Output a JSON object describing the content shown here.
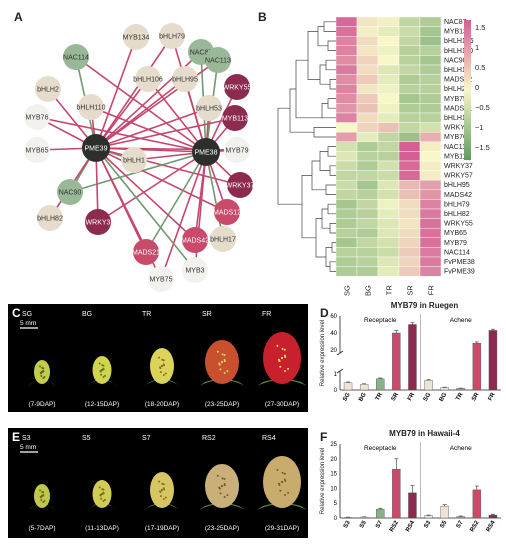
{
  "panels": {
    "a": "A",
    "b": "B",
    "c": "C",
    "d": "D",
    "e": "E",
    "f": "F"
  },
  "network": {
    "hubs": [
      "PME39",
      "PME38"
    ],
    "nodes": [
      {
        "label": "bHLH79",
        "color": "#e6dccb"
      },
      {
        "label": "NAC87",
        "color": "#98b898"
      },
      {
        "label": "MYB134",
        "color": "#e6dccb"
      },
      {
        "label": "NAC114",
        "color": "#98b898"
      },
      {
        "label": "bHLH106",
        "color": "#e6dccb"
      },
      {
        "label": "bHLH95",
        "color": "#e6dccb"
      },
      {
        "label": "NAC113",
        "color": "#98b898"
      },
      {
        "label": "bHLH2",
        "color": "#e6dccb"
      },
      {
        "label": "bHLH110",
        "color": "#e6dccb"
      },
      {
        "label": "bHLH53",
        "color": "#e6dccb"
      },
      {
        "label": "WRKY55",
        "color": "#8c2a50"
      },
      {
        "label": "MYB76",
        "color": "#f3f1ee"
      },
      {
        "label": "MYB113",
        "color": "#8c2a50"
      },
      {
        "label": "MYB65",
        "color": "#f3f1ee"
      },
      {
        "label": "MYB79",
        "color": "#f3f1ee"
      },
      {
        "label": "bHLH1",
        "color": "#e6dccb"
      },
      {
        "label": "WRKY37",
        "color": "#8c2a50"
      },
      {
        "label": "NAC90",
        "color": "#98b898"
      },
      {
        "label": "MADS12",
        "color": "#c94a6a"
      },
      {
        "label": "bHLH82",
        "color": "#e6dccb"
      },
      {
        "label": "WRKY3",
        "color": "#8c2a50"
      },
      {
        "label": "MADS21",
        "color": "#c94a6a"
      },
      {
        "label": "MADS42",
        "color": "#c94a6a"
      },
      {
        "label": "bHLH17",
        "color": "#e6dccb"
      },
      {
        "label": "MYB75",
        "color": "#f3f1ee"
      },
      {
        "label": "MYB3",
        "color": "#f3f1ee"
      }
    ]
  },
  "heatmap": {
    "columns": [
      "SG",
      "BG",
      "TR",
      "SR",
      "FR"
    ],
    "rows": [
      "NAC87",
      "MYB134",
      "bHLH106",
      "bHLH110",
      "NAC90",
      "bHLH17",
      "MADS12",
      "bHLH2",
      "MYB75",
      "MADS21",
      "bHLH1",
      "WRKY3",
      "MYB76",
      "NAC113",
      "MYB113",
      "WRKY37",
      "WRKY57",
      "bHLH95",
      "MADS42",
      "bHLH79",
      "bHLH82",
      "WRKY55",
      "MYB65",
      "MYB79",
      "NAC114",
      "FvPME38",
      "FvPME39"
    ],
    "values": [
      [
        1.6,
        0.2,
        0.1,
        -0.6,
        -0.8
      ],
      [
        1.5,
        0.1,
        -0.2,
        -0.5,
        -0.9
      ],
      [
        1.3,
        0.3,
        0.0,
        -0.6,
        -1.0
      ],
      [
        1.3,
        0.2,
        -0.1,
        -0.7,
        -0.7
      ],
      [
        1.2,
        0.4,
        0.0,
        -0.7,
        -0.9
      ],
      [
        1.4,
        0.3,
        -0.3,
        -0.6,
        -0.8
      ],
      [
        1.2,
        0.5,
        -0.2,
        -0.8,
        -0.7
      ],
      [
        1.3,
        0.2,
        -0.1,
        -0.7,
        -0.7
      ],
      [
        1.2,
        0.5,
        0.0,
        -0.9,
        -0.8
      ],
      [
        1.1,
        0.6,
        -0.1,
        -0.8,
        -0.8
      ],
      [
        1.3,
        0.3,
        -0.2,
        -0.7,
        -0.7
      ],
      [
        0.0,
        0.4,
        0.6,
        -0.6,
        -0.4
      ],
      [
        1.0,
        -0.2,
        -0.6,
        -1.0,
        0.8
      ],
      [
        -0.4,
        -0.8,
        -0.6,
        1.7,
        0.1
      ],
      [
        -0.3,
        -0.7,
        -0.7,
        1.7,
        0.0
      ],
      [
        -0.5,
        -0.8,
        -0.4,
        1.6,
        0.1
      ],
      [
        -0.6,
        -0.6,
        -0.5,
        1.6,
        0.1
      ],
      [
        -0.5,
        -0.9,
        -0.3,
        0.7,
        1.0
      ],
      [
        -0.6,
        -0.7,
        -0.4,
        0.6,
        1.1
      ],
      [
        -0.9,
        -0.6,
        -0.1,
        0.3,
        1.3
      ],
      [
        -0.8,
        -0.7,
        -0.2,
        0.3,
        1.4
      ],
      [
        -0.8,
        -0.6,
        -0.3,
        0.2,
        1.5
      ],
      [
        -0.7,
        -0.8,
        -0.3,
        0.3,
        1.5
      ],
      [
        -0.9,
        -0.6,
        -0.4,
        0.4,
        1.5
      ],
      [
        -0.7,
        -0.7,
        -0.5,
        0.5,
        1.4
      ],
      [
        -0.8,
        -0.7,
        -0.3,
        0.4,
        1.4
      ],
      [
        -0.8,
        -0.8,
        -0.2,
        0.5,
        1.3
      ]
    ],
    "legend_ticks": [
      "1.5",
      "1",
      "0.5",
      "0",
      "−0.5",
      "−1",
      "−1.5"
    ],
    "colors": {
      "high": "#d55f95",
      "mid": "#f7f7c8",
      "low": "#5e9a5e"
    }
  },
  "photos_c": {
    "scale": "5 mm",
    "stages": [
      "SG",
      "BG",
      "TR",
      "SR",
      "FR"
    ],
    "dap": [
      "(7-9DAP)",
      "(12-15DAP)",
      "(18-20DAP)",
      "(23-25DAP)",
      "(27-30DAP)"
    ]
  },
  "photos_e": {
    "scale": "5 mm",
    "stages": [
      "S3",
      "S5",
      "S7",
      "RS2",
      "RS4"
    ],
    "dap": [
      "(5-7DAP)",
      "(11-13DAP)",
      "(17-19DAP)",
      "(23-25DAP)",
      "(29-31DAP)"
    ]
  },
  "chart_data": [
    {
      "type": "bar",
      "title": "MYB79 in Ruegen",
      "ylabel": "Relative expression level",
      "groups": [
        "Receptacle",
        "Achene"
      ],
      "categories": [
        "SG",
        "BG",
        "TR",
        "SR",
        "FR",
        "SG",
        "BG",
        "TR",
        "SR",
        "FR"
      ],
      "values": [
        0.45,
        0.35,
        0.7,
        40,
        50,
        0.6,
        0.15,
        0.1,
        28,
        43
      ],
      "errors": [
        0.05,
        0.04,
        0.05,
        3,
        2,
        0.05,
        0.03,
        0.02,
        1.5,
        1.5
      ],
      "yticks_lower": [
        "0",
        "1"
      ],
      "yticks_upper": [
        "20",
        "40",
        "60"
      ],
      "colors": [
        "#ece5d6",
        "#ece5d6",
        "#8ab08a",
        "#c94a6a",
        "#8c2a50",
        "#ece5d6",
        "#ece5d6",
        "#8ab08a",
        "#c94a6a",
        "#8c2a50"
      ]
    },
    {
      "type": "bar",
      "title": "MYB79 in Hawaii-4",
      "ylabel": "Relative expression level",
      "groups": [
        "Receptacle",
        "Achene"
      ],
      "categories": [
        "S3",
        "S5",
        "S7",
        "RS2",
        "RS4",
        "S3",
        "S5",
        "S7",
        "RS2",
        "RS4"
      ],
      "values": [
        0.2,
        0.3,
        3,
        16.5,
        8.5,
        0.8,
        4,
        0.5,
        9.5,
        1
      ],
      "errors": [
        0.1,
        0.1,
        0.3,
        3.5,
        2.5,
        0.2,
        0.5,
        0.2,
        1.3,
        0.3
      ],
      "ylim": [
        0,
        25
      ],
      "yticks": [
        "0",
        "5",
        "10",
        "15",
        "20",
        "25"
      ],
      "colors": [
        "#ece5d6",
        "#ece5d6",
        "#8ab08a",
        "#c94a6a",
        "#8c2a50",
        "#ece5d6",
        "#ece5d6",
        "#8ab08a",
        "#c94a6a",
        "#8c2a50"
      ]
    }
  ]
}
